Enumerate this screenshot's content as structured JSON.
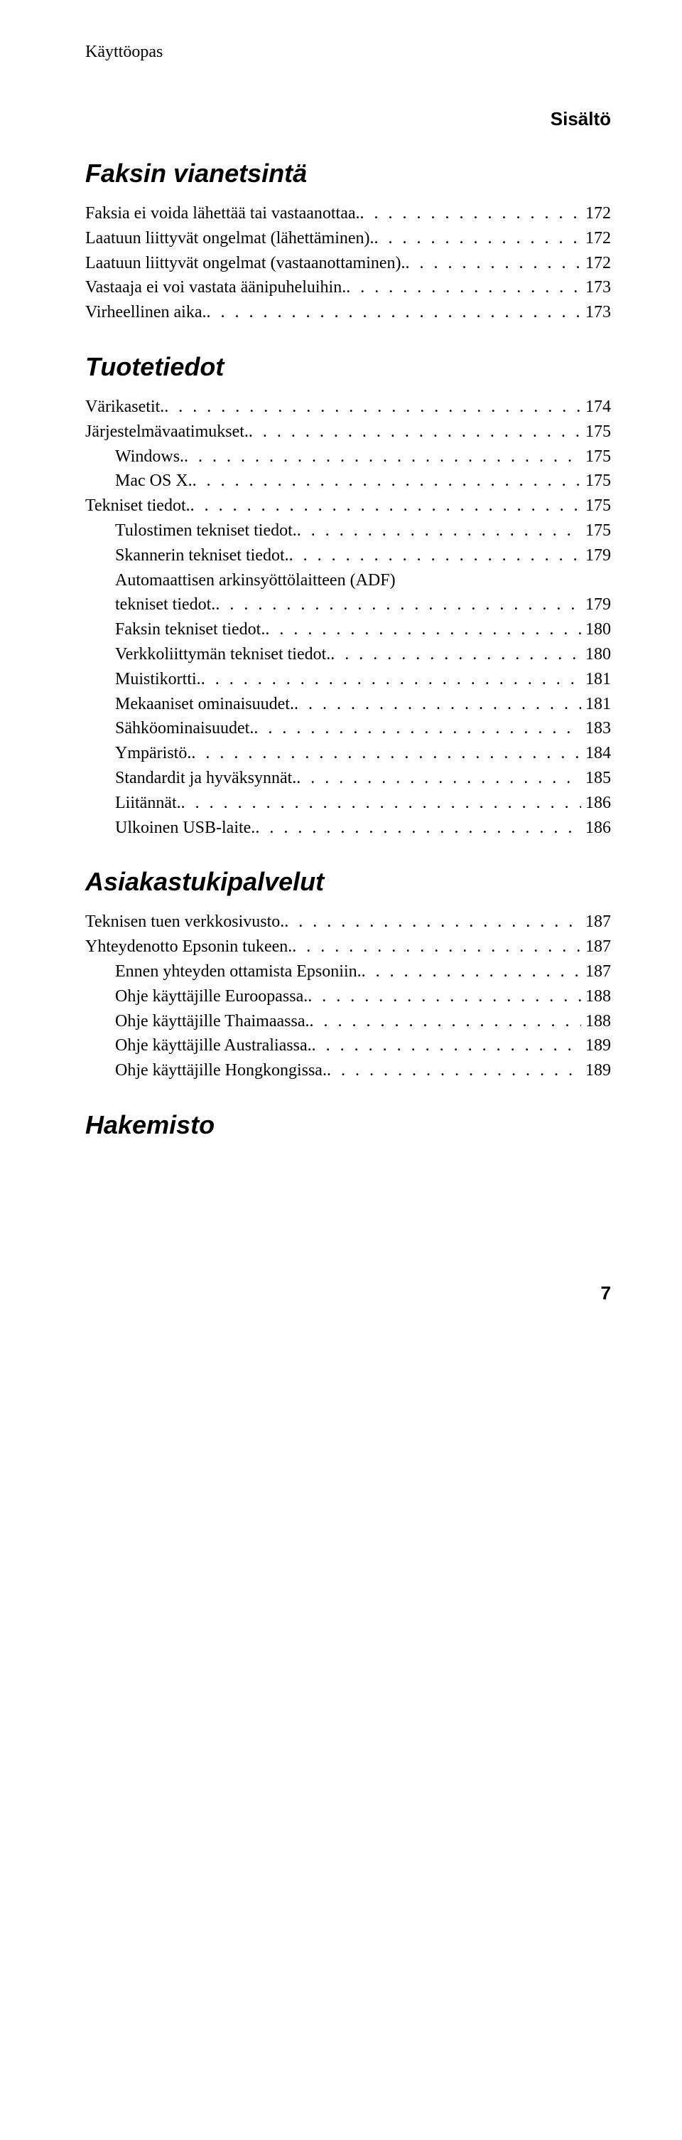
{
  "guideTitle": "Käyttöopas",
  "tocLabel": "Sisältö",
  "pageNumber": "7",
  "sections": [
    {
      "heading": "Faksin vianetsintä",
      "entries": [
        {
          "label": "Faksia ei voida lähettää tai vastaanottaa.",
          "page": "172",
          "indent": 0
        },
        {
          "label": "Laatuun liittyvät ongelmat (lähettäminen).",
          "page": "172",
          "indent": 0
        },
        {
          "label": "Laatuun liittyvät ongelmat (vastaanottaminen).",
          "page": "172",
          "indent": 0
        },
        {
          "label": "Vastaaja ei voi vastata äänipuheluihin.",
          "page": "173",
          "indent": 0
        },
        {
          "label": "Virheellinen aika.",
          "page": "173",
          "indent": 0
        }
      ]
    },
    {
      "heading": "Tuotetiedot",
      "entries": [
        {
          "label": "Värikasetit.",
          "page": "174",
          "indent": 0
        },
        {
          "label": "Järjestelmävaatimukset.",
          "page": "175",
          "indent": 0
        },
        {
          "label": "Windows.",
          "page": "175",
          "indent": 1
        },
        {
          "label": "Mac OS X.",
          "page": "175",
          "indent": 1
        },
        {
          "label": "Tekniset tiedot.",
          "page": "175",
          "indent": 0
        },
        {
          "label": "Tulostimen tekniset tiedot.",
          "page": "175",
          "indent": 1
        },
        {
          "label": "Skannerin tekniset tiedot.",
          "page": "179",
          "indent": 1
        },
        {
          "label": "Automaattisen arkinsyöttölaitteen (ADF)",
          "label2": "tekniset tiedot.",
          "page": "179",
          "indent": 1,
          "multiline": true
        },
        {
          "label": "Faksin tekniset tiedot.",
          "page": "180",
          "indent": 1
        },
        {
          "label": "Verkkoliittymän tekniset tiedot.",
          "page": "180",
          "indent": 1
        },
        {
          "label": "Muistikortti.",
          "page": "181",
          "indent": 1
        },
        {
          "label": "Mekaaniset ominaisuudet.",
          "page": "181",
          "indent": 1
        },
        {
          "label": "Sähköominaisuudet.",
          "page": "183",
          "indent": 1
        },
        {
          "label": "Ympäristö.",
          "page": "184",
          "indent": 1
        },
        {
          "label": "Standardit ja hyväksynnät.",
          "page": "185",
          "indent": 1
        },
        {
          "label": "Liitännät.",
          "page": "186",
          "indent": 1
        },
        {
          "label": "Ulkoinen USB-laite.",
          "page": "186",
          "indent": 1
        }
      ]
    },
    {
      "heading": "Asiakastukipalvelut",
      "entries": [
        {
          "label": "Teknisen tuen verkkosivusto.",
          "page": "187",
          "indent": 0
        },
        {
          "label": "Yhteydenotto Epsonin tukeen.",
          "page": "187",
          "indent": 0
        },
        {
          "label": "Ennen yhteyden ottamista Epsoniin.",
          "page": "187",
          "indent": 1
        },
        {
          "label": "Ohje käyttäjille Euroopassa.",
          "page": "188",
          "indent": 1
        },
        {
          "label": "Ohje käyttäjille Thaimaassa.",
          "page": "188",
          "indent": 1
        },
        {
          "label": "Ohje käyttäjille Australiassa.",
          "page": "189",
          "indent": 1
        },
        {
          "label": "Ohje käyttäjille Hongkongissa.",
          "page": "189",
          "indent": 1
        }
      ]
    },
    {
      "heading": "Hakemisto",
      "entries": []
    }
  ]
}
